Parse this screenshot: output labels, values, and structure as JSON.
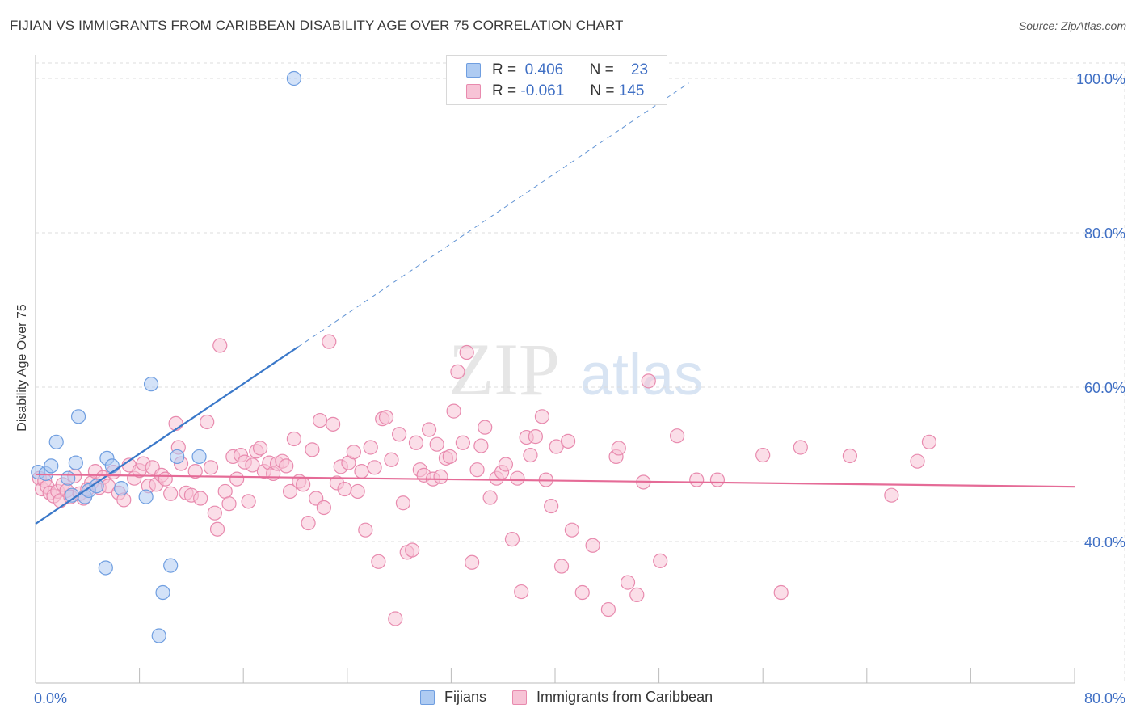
{
  "title": "FIJIAN VS IMMIGRANTS FROM CARIBBEAN DISABILITY AGE OVER 75 CORRELATION CHART",
  "source": "Source: ZipAtlas.com",
  "watermark": {
    "zip": "ZIP",
    "atlas": "atlas"
  },
  "legend": {
    "rows": [
      {
        "r_label": "R =",
        "r_value": "0.406",
        "n_label": "N =",
        "n_value": "23",
        "color": "#aecbf2",
        "border": "#6f9ee0"
      },
      {
        "r_label": "R =",
        "r_value": "-0.061",
        "n_label": "N =",
        "n_value": "145",
        "color": "#f7c3d6",
        "border": "#e88aae"
      }
    ]
  },
  "colors": {
    "fijian_fill": "#aecbf2",
    "fijian_stroke": "#6f9ee0",
    "fijian_line": "#3a78c9",
    "carib_fill": "#f7c3d6",
    "carib_stroke": "#e88aae",
    "carib_line": "#e56b97",
    "axis_text": "#3f6fc4",
    "grid": "#dcdcdc"
  },
  "chart_data": {
    "type": "scatter",
    "title": "FIJIAN VS IMMIGRANTS FROM CARIBBEAN DISABILITY AGE OVER 75 CORRELATION CHART",
    "xlabel": "",
    "ylabel": "Disability Age Over 75",
    "xlim": [
      0,
      80
    ],
    "ylim": [
      20,
      102
    ],
    "x_tick_labels": [
      "0.0%",
      "80.0%"
    ],
    "y_ticks": [
      40,
      60,
      80,
      100
    ],
    "y_tick_labels": [
      "40.0%",
      "60.0%",
      "80.0%",
      "100.0%"
    ],
    "series": [
      {
        "name": "Fijians",
        "r": 0.406,
        "n": 23,
        "trend": {
          "x": [
            0,
            20.2
          ],
          "y": [
            42.3,
            65.2
          ]
        },
        "trend_ext": {
          "x": [
            20.2,
            50.3
          ],
          "y": [
            65.2,
            99.4
          ]
        },
        "points": [
          [
            0.2,
            49.0
          ],
          [
            0.8,
            48.8
          ],
          [
            1.2,
            49.8
          ],
          [
            1.6,
            52.9
          ],
          [
            2.5,
            48.2
          ],
          [
            3.1,
            50.2
          ],
          [
            3.3,
            56.2
          ],
          [
            3.8,
            45.8
          ],
          [
            4.1,
            46.6
          ],
          [
            4.7,
            47.2
          ],
          [
            5.4,
            36.6
          ],
          [
            5.5,
            50.8
          ],
          [
            5.9,
            49.8
          ],
          [
            6.6,
            46.9
          ],
          [
            8.5,
            45.8
          ],
          [
            8.9,
            60.4
          ],
          [
            9.5,
            27.8
          ],
          [
            9.8,
            33.4
          ],
          [
            10.4,
            36.9
          ],
          [
            10.9,
            51.0
          ],
          [
            12.6,
            51.0
          ],
          [
            19.9,
            100.0
          ],
          [
            2.8,
            46.0
          ]
        ]
      },
      {
        "name": "Immigrants from Caribbean",
        "r": -0.061,
        "n": 145,
        "trend": {
          "x": [
            0,
            80
          ],
          "y": [
            48.7,
            47.1
          ]
        },
        "points": [
          [
            0.3,
            48.2
          ],
          [
            0.5,
            46.8
          ],
          [
            0.7,
            47.9
          ],
          [
            0.9,
            47.1
          ],
          [
            1.1,
            46.3
          ],
          [
            1.4,
            45.9
          ],
          [
            1.7,
            46.5
          ],
          [
            1.9,
            45.3
          ],
          [
            2.1,
            47.4
          ],
          [
            2.4,
            46.6
          ],
          [
            2.7,
            45.8
          ],
          [
            3.0,
            48.5
          ],
          [
            3.4,
            46.2
          ],
          [
            3.7,
            45.6
          ],
          [
            4.0,
            46.8
          ],
          [
            4.3,
            47.6
          ],
          [
            4.6,
            49.1
          ],
          [
            4.9,
            47.0
          ],
          [
            5.2,
            48.3
          ],
          [
            5.6,
            47.2
          ],
          [
            6.0,
            49.0
          ],
          [
            6.4,
            46.3
          ],
          [
            6.8,
            45.4
          ],
          [
            7.2,
            49.9
          ],
          [
            7.6,
            48.2
          ],
          [
            8.0,
            49.2
          ],
          [
            8.3,
            50.1
          ],
          [
            8.7,
            47.2
          ],
          [
            9.0,
            49.6
          ],
          [
            9.3,
            47.4
          ],
          [
            9.7,
            48.6
          ],
          [
            10.0,
            48.1
          ],
          [
            10.4,
            46.2
          ],
          [
            10.8,
            55.3
          ],
          [
            11.0,
            52.2
          ],
          [
            11.2,
            50.1
          ],
          [
            11.6,
            46.3
          ],
          [
            12.0,
            46.0
          ],
          [
            12.3,
            49.1
          ],
          [
            12.7,
            45.6
          ],
          [
            13.2,
            55.5
          ],
          [
            13.5,
            49.6
          ],
          [
            13.8,
            43.7
          ],
          [
            14.0,
            41.6
          ],
          [
            14.2,
            65.4
          ],
          [
            14.6,
            46.5
          ],
          [
            14.9,
            44.9
          ],
          [
            15.2,
            51.0
          ],
          [
            15.5,
            48.1
          ],
          [
            15.8,
            51.2
          ],
          [
            16.1,
            50.3
          ],
          [
            16.4,
            45.2
          ],
          [
            16.7,
            49.9
          ],
          [
            17.0,
            51.7
          ],
          [
            17.3,
            52.1
          ],
          [
            17.6,
            49.1
          ],
          [
            18.0,
            50.2
          ],
          [
            18.3,
            48.8
          ],
          [
            18.6,
            50.1
          ],
          [
            19.0,
            50.4
          ],
          [
            19.3,
            49.8
          ],
          [
            19.6,
            46.5
          ],
          [
            19.9,
            53.3
          ],
          [
            20.3,
            47.8
          ],
          [
            20.6,
            47.4
          ],
          [
            21.0,
            42.4
          ],
          [
            21.3,
            51.9
          ],
          [
            21.6,
            45.6
          ],
          [
            21.9,
            55.7
          ],
          [
            22.2,
            44.4
          ],
          [
            22.6,
            65.9
          ],
          [
            22.9,
            55.2
          ],
          [
            23.2,
            47.6
          ],
          [
            23.5,
            49.7
          ],
          [
            23.8,
            46.8
          ],
          [
            24.1,
            50.2
          ],
          [
            24.5,
            51.6
          ],
          [
            24.8,
            46.5
          ],
          [
            25.1,
            49.1
          ],
          [
            25.4,
            41.5
          ],
          [
            25.8,
            52.2
          ],
          [
            26.1,
            49.6
          ],
          [
            26.4,
            37.4
          ],
          [
            26.7,
            55.9
          ],
          [
            27.0,
            56.1
          ],
          [
            27.4,
            50.6
          ],
          [
            27.7,
            30.0
          ],
          [
            28.0,
            53.9
          ],
          [
            28.3,
            45.0
          ],
          [
            28.6,
            38.6
          ],
          [
            29.0,
            38.9
          ],
          [
            29.3,
            52.8
          ],
          [
            29.6,
            49.3
          ],
          [
            29.9,
            48.6
          ],
          [
            30.3,
            54.5
          ],
          [
            30.6,
            48.1
          ],
          [
            30.9,
            52.6
          ],
          [
            31.2,
            48.4
          ],
          [
            31.6,
            50.8
          ],
          [
            31.9,
            51.0
          ],
          [
            32.2,
            56.9
          ],
          [
            32.5,
            62.0
          ],
          [
            32.9,
            52.8
          ],
          [
            33.2,
            64.5
          ],
          [
            33.6,
            37.3
          ],
          [
            34.0,
            49.3
          ],
          [
            34.3,
            52.4
          ],
          [
            34.6,
            54.8
          ],
          [
            35.0,
            45.7
          ],
          [
            35.5,
            48.2
          ],
          [
            35.9,
            49.0
          ],
          [
            36.2,
            50.0
          ],
          [
            36.7,
            40.3
          ],
          [
            37.1,
            48.2
          ],
          [
            37.4,
            33.5
          ],
          [
            37.8,
            53.5
          ],
          [
            38.1,
            51.2
          ],
          [
            38.5,
            53.6
          ],
          [
            39.0,
            56.2
          ],
          [
            39.3,
            48.0
          ],
          [
            39.7,
            44.6
          ],
          [
            40.1,
            52.3
          ],
          [
            40.5,
            36.8
          ],
          [
            41.0,
            53.0
          ],
          [
            41.3,
            41.5
          ],
          [
            42.1,
            33.4
          ],
          [
            42.9,
            39.5
          ],
          [
            44.1,
            31.2
          ],
          [
            44.7,
            51.0
          ],
          [
            44.9,
            52.1
          ],
          [
            45.6,
            34.7
          ],
          [
            46.3,
            33.1
          ],
          [
            46.8,
            47.7
          ],
          [
            47.2,
            60.8
          ],
          [
            48.1,
            37.5
          ],
          [
            49.4,
            53.7
          ],
          [
            50.9,
            48.0
          ],
          [
            52.5,
            48.0
          ],
          [
            56.0,
            51.2
          ],
          [
            57.4,
            33.4
          ],
          [
            58.9,
            52.2
          ],
          [
            62.7,
            51.1
          ],
          [
            65.9,
            46.0
          ],
          [
            67.9,
            50.4
          ],
          [
            68.8,
            52.9
          ]
        ]
      }
    ]
  },
  "bottom_legend": {
    "fijians": "Fijians",
    "caribbean": "Immigrants from Caribbean"
  }
}
